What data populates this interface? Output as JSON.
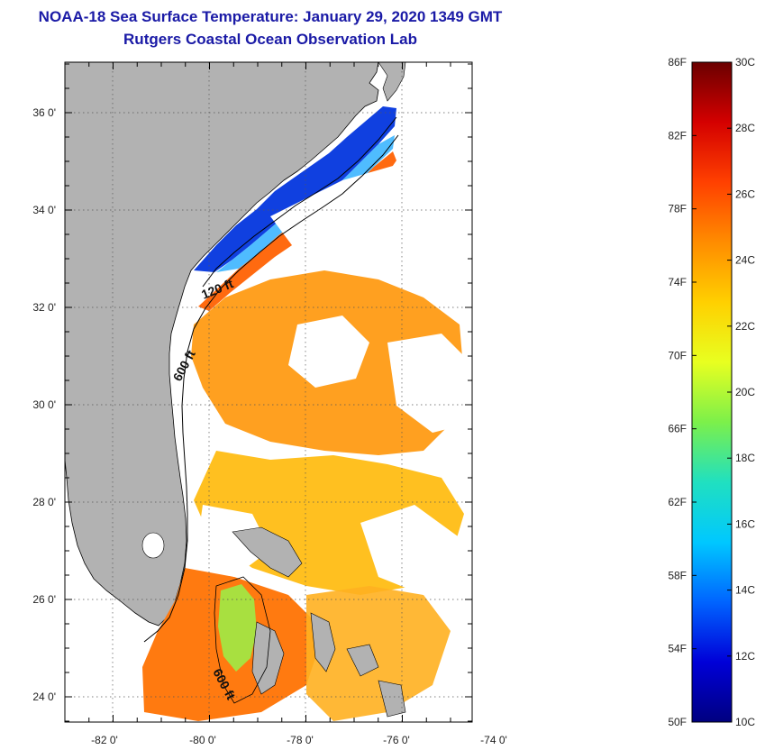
{
  "header": {
    "title": "NOAA-18 Sea Surface Temperature:  January 29, 2020 1349 GMT",
    "subtitle": "Rutgers Coastal Ocean Observation Lab"
  },
  "map": {
    "lon_ticks": [
      "-82 0'",
      "-80 0'",
      "-78 0'",
      "-76 0'",
      "-74 0'"
    ],
    "lat_ticks": [
      "36 0'",
      "34 0'",
      "32 0'",
      "30 0'",
      "28 0'",
      "26 0'",
      "24 0'"
    ],
    "contour_labels": [
      "120 ft",
      "600 ft",
      "600 ft"
    ],
    "colors": {
      "land": "#b2b2b2",
      "cloud": "#ffffff",
      "coastline": "#000000"
    }
  },
  "colorbar": {
    "fahrenheit": [
      "86F",
      "82F",
      "78F",
      "74F",
      "70F",
      "66F",
      "62F",
      "58F",
      "54F",
      "50F"
    ],
    "celsius": [
      "30C",
      "28C",
      "26C",
      "24C",
      "22C",
      "20C",
      "18C",
      "16C",
      "14C",
      "12C",
      "10C"
    ],
    "stops": [
      "#6b0000",
      "#d40000",
      "#ff4000",
      "#ff8c00",
      "#ffd000",
      "#e8ff20",
      "#7cf04a",
      "#20e0c0",
      "#00c8ff",
      "#0064ff",
      "#0000d8",
      "#000080"
    ]
  }
}
